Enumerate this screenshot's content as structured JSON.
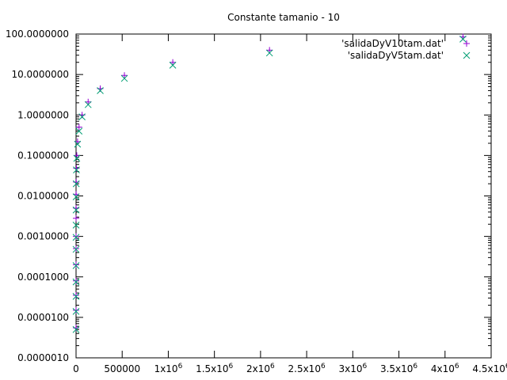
{
  "chart_data": {
    "type": "scatter",
    "title": "Constante tamanio - 10",
    "xlabel": "",
    "ylabel": "",
    "x_scale": "linear",
    "y_scale": "log",
    "xlim": [
      0,
      4500000
    ],
    "ylim": [
      1e-06,
      100
    ],
    "grid": false,
    "legend_position": "top-right",
    "x_ticks": [
      {
        "value": 0,
        "label": "0"
      },
      {
        "value": 500000,
        "label": "500000"
      },
      {
        "value": 1000000,
        "label": "1x10",
        "exp": "6"
      },
      {
        "value": 1500000,
        "label": "1.5x10",
        "exp": "6"
      },
      {
        "value": 2000000,
        "label": "2x10",
        "exp": "6"
      },
      {
        "value": 2500000,
        "label": "2.5x10",
        "exp": "6"
      },
      {
        "value": 3000000,
        "label": "3x10",
        "exp": "6"
      },
      {
        "value": 3500000,
        "label": "3.5x10",
        "exp": "6"
      },
      {
        "value": 4000000,
        "label": "4x10",
        "exp": "6"
      },
      {
        "value": 4500000,
        "label": "4.5x10",
        "exp": "6"
      }
    ],
    "y_ticks": [
      {
        "value": 1e-06,
        "label": "0.0000010"
      },
      {
        "value": 1e-05,
        "label": "0.0000100"
      },
      {
        "value": 0.0001,
        "label": "0.0001000"
      },
      {
        "value": 0.001,
        "label": "0.0010000"
      },
      {
        "value": 0.01,
        "label": "0.0100000"
      },
      {
        "value": 0.1,
        "label": "0.1000000"
      },
      {
        "value": 1,
        "label": "1.0000000"
      },
      {
        "value": 10,
        "label": "10.0000000"
      },
      {
        "value": 100,
        "label": "100.0000000"
      }
    ],
    "series": [
      {
        "name": "'salidaDyV10tam.dat'",
        "marker": "plus",
        "color": "#9400d3",
        "x": [
          2,
          4,
          8,
          16,
          32,
          64,
          128,
          256,
          512,
          1024,
          2048,
          4096,
          8192,
          16384,
          32768,
          65536,
          131072,
          262144,
          524288,
          1048576,
          2097152,
          4194304
        ],
        "y": [
          5.5e-06,
          1.5e-05,
          3.5e-05,
          8e-05,
          0.0002,
          0.0005,
          0.001,
          0.0028,
          0.005,
          0.011,
          0.022,
          0.048,
          0.1,
          0.22,
          0.5,
          1.0,
          2.1,
          4.5,
          9.5,
          20,
          40,
          85
        ]
      },
      {
        "name": "'salidaDyV5tam.dat'",
        "marker": "x",
        "color": "#009e73",
        "x": [
          2,
          4,
          8,
          16,
          32,
          64,
          128,
          256,
          512,
          1024,
          2048,
          4096,
          8192,
          16384,
          32768,
          65536,
          131072,
          262144,
          524288,
          1048576,
          2097152,
          4194304
        ],
        "y": [
          5e-06,
          1.4e-05,
          3.3e-05,
          7.5e-05,
          0.00019,
          0.00048,
          0.00095,
          0.0019,
          0.0045,
          0.0095,
          0.02,
          0.044,
          0.085,
          0.19,
          0.4,
          0.9,
          1.8,
          4.0,
          8.0,
          17,
          34,
          75
        ]
      }
    ]
  }
}
